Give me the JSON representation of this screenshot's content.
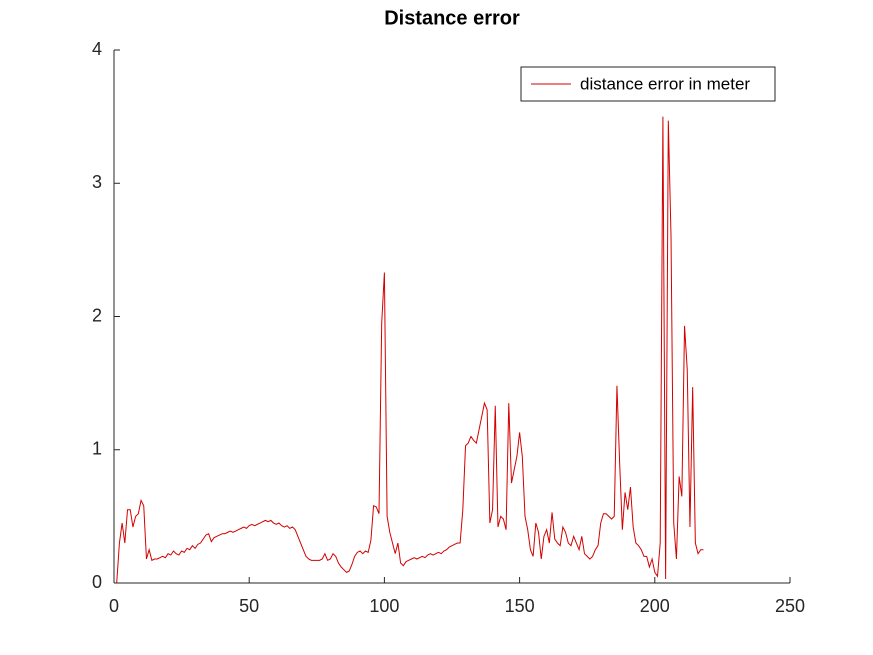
{
  "chart_data": {
    "type": "line",
    "title": "Distance error",
    "x": [
      1,
      2,
      3,
      4,
      5,
      6,
      7,
      8,
      9,
      10,
      11,
      12,
      13,
      14,
      15,
      16,
      17,
      18,
      19,
      20,
      21,
      22,
      23,
      24,
      25,
      26,
      27,
      28,
      29,
      30,
      31,
      32,
      33,
      34,
      35,
      36,
      37,
      38,
      39,
      40,
      41,
      42,
      43,
      44,
      45,
      46,
      47,
      48,
      49,
      50,
      51,
      52,
      53,
      54,
      55,
      56,
      57,
      58,
      59,
      60,
      61,
      62,
      63,
      64,
      65,
      66,
      67,
      68,
      69,
      70,
      71,
      72,
      73,
      74,
      75,
      76,
      77,
      78,
      79,
      80,
      81,
      82,
      83,
      84,
      85,
      86,
      87,
      88,
      89,
      90,
      91,
      92,
      93,
      94,
      95,
      96,
      97,
      98,
      99,
      100,
      101,
      102,
      103,
      104,
      105,
      106,
      107,
      108,
      109,
      110,
      111,
      112,
      113,
      114,
      115,
      116,
      117,
      118,
      119,
      120,
      121,
      122,
      123,
      124,
      125,
      126,
      127,
      128,
      129,
      130,
      131,
      132,
      133,
      134,
      135,
      136,
      137,
      138,
      139,
      140,
      141,
      142,
      143,
      144,
      145,
      146,
      147,
      148,
      149,
      150,
      151,
      152,
      153,
      154,
      155,
      156,
      157,
      158,
      159,
      160,
      161,
      162,
      163,
      164,
      165,
      166,
      167,
      168,
      169,
      170,
      171,
      172,
      173,
      174,
      175,
      176,
      177,
      178,
      179,
      180,
      181,
      182,
      183,
      184,
      185,
      186,
      187,
      188,
      189,
      190,
      191,
      192,
      193,
      194,
      195,
      196,
      197,
      198,
      199,
      200,
      201,
      202,
      203,
      204,
      205,
      206,
      207,
      208,
      209,
      210,
      211,
      212,
      213,
      214,
      215,
      216,
      217,
      218
    ],
    "series": [
      {
        "name": "distance error in meter",
        "color": "#d40000",
        "values": [
          0,
          0.3,
          0.45,
          0.3,
          0.55,
          0.55,
          0.42,
          0.5,
          0.52,
          0.62,
          0.58,
          0.18,
          0.25,
          0.17,
          0.18,
          0.18,
          0.19,
          0.2,
          0.19,
          0.22,
          0.21,
          0.24,
          0.22,
          0.21,
          0.24,
          0.23,
          0.26,
          0.25,
          0.28,
          0.26,
          0.29,
          0.3,
          0.33,
          0.36,
          0.37,
          0.31,
          0.34,
          0.35,
          0.36,
          0.37,
          0.37,
          0.38,
          0.39,
          0.38,
          0.39,
          0.4,
          0.41,
          0.42,
          0.41,
          0.43,
          0.44,
          0.43,
          0.44,
          0.45,
          0.46,
          0.47,
          0.46,
          0.47,
          0.45,
          0.44,
          0.45,
          0.43,
          0.42,
          0.43,
          0.41,
          0.42,
          0.4,
          0.35,
          0.3,
          0.25,
          0.2,
          0.18,
          0.17,
          0.17,
          0.17,
          0.17,
          0.18,
          0.22,
          0.17,
          0.18,
          0.22,
          0.2,
          0.15,
          0.12,
          0.1,
          0.08,
          0.09,
          0.14,
          0.2,
          0.23,
          0.24,
          0.22,
          0.24,
          0.23,
          0.32,
          0.58,
          0.57,
          0.52,
          1.95,
          2.33,
          0.5,
          0.38,
          0.3,
          0.22,
          0.3,
          0.15,
          0.13,
          0.16,
          0.17,
          0.18,
          0.19,
          0.18,
          0.19,
          0.2,
          0.19,
          0.21,
          0.22,
          0.21,
          0.22,
          0.23,
          0.22,
          0.24,
          0.25,
          0.27,
          0.28,
          0.29,
          0.3,
          0.3,
          0.55,
          1.03,
          1.05,
          1.1,
          1.07,
          1.05,
          1.15,
          1.25,
          1.35,
          1.3,
          0.45,
          0.55,
          1.33,
          0.42,
          0.5,
          0.48,
          0.4,
          1.35,
          0.75,
          0.85,
          0.95,
          1.13,
          0.95,
          0.5,
          0.4,
          0.25,
          0.2,
          0.45,
          0.38,
          0.18,
          0.35,
          0.4,
          0.3,
          0.53,
          0.33,
          0.3,
          0.28,
          0.42,
          0.38,
          0.3,
          0.28,
          0.35,
          0.3,
          0.25,
          0.35,
          0.22,
          0.2,
          0.18,
          0.2,
          0.25,
          0.28,
          0.45,
          0.52,
          0.52,
          0.5,
          0.48,
          0.5,
          1.48,
          0.9,
          0.4,
          0.68,
          0.55,
          0.72,
          0.42,
          0.3,
          0.28,
          0.25,
          0.2,
          0.2,
          0.12,
          0.18,
          0.08,
          0.05,
          0.3,
          3.5,
          0.03,
          3.47,
          2.6,
          0.45,
          0.18,
          0.8,
          0.65,
          1.93,
          1.6,
          0.42,
          1.47,
          0.3,
          0.22,
          0.25,
          0.25
        ]
      }
    ],
    "xlim": [
      0,
      250
    ],
    "xticks": [
      0,
      50,
      100,
      150,
      200,
      250
    ],
    "ylim": [
      0,
      4
    ],
    "yticks": [
      0,
      1,
      2,
      3,
      4
    ],
    "legend": "upper right"
  }
}
